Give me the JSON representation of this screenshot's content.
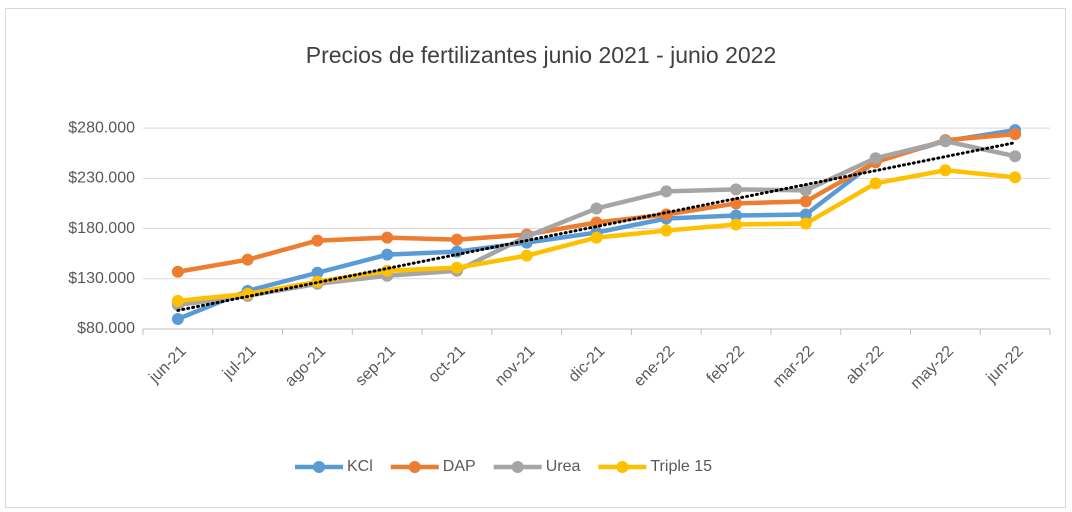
{
  "chart_data": {
    "type": "line",
    "title": "Precios de fertilizantes junio 2021 - junio 2022",
    "categories": [
      "jun-21",
      "jul-21",
      "ago-21",
      "sep-21",
      "oct-21",
      "nov-21",
      "dic-21",
      "ene-22",
      "feb-22",
      "mar-22",
      "abr-22",
      "may-22",
      "jun-22"
    ],
    "series": [
      {
        "name": "KCl",
        "color": "#5b9bd5",
        "values": [
          90000,
          118000,
          136000,
          154000,
          157000,
          166000,
          176000,
          190000,
          193000,
          194000,
          247000,
          267000,
          278000
        ]
      },
      {
        "name": "DAP",
        "color": "#ed7d31",
        "values": [
          137000,
          149000,
          168000,
          171000,
          169000,
          174000,
          186000,
          194000,
          205000,
          207000,
          246000,
          268000,
          274000
        ]
      },
      {
        "name": "Urea",
        "color": "#a5a5a5",
        "values": [
          104000,
          113000,
          125000,
          133000,
          138000,
          172000,
          200000,
          217000,
          219000,
          218000,
          250000,
          267000,
          252000
        ]
      },
      {
        "name": "Triple 15",
        "color": "#ffc000",
        "values": [
          108000,
          115000,
          127000,
          138000,
          141000,
          153000,
          171000,
          178000,
          184000,
          185000,
          225000,
          238000,
          231000
        ]
      }
    ],
    "ylim": [
      80000,
      300000
    ],
    "yticks": [
      {
        "value": 80000,
        "label": "$80.000"
      },
      {
        "value": 130000,
        "label": "$130.000"
      },
      {
        "value": 180000,
        "label": "$180.000"
      },
      {
        "value": 230000,
        "label": "$230.000"
      },
      {
        "value": 280000,
        "label": "$280.000"
      }
    ],
    "grid": true,
    "legend": "bottom",
    "trendline": {
      "series": 0,
      "color": "#000000"
    }
  }
}
